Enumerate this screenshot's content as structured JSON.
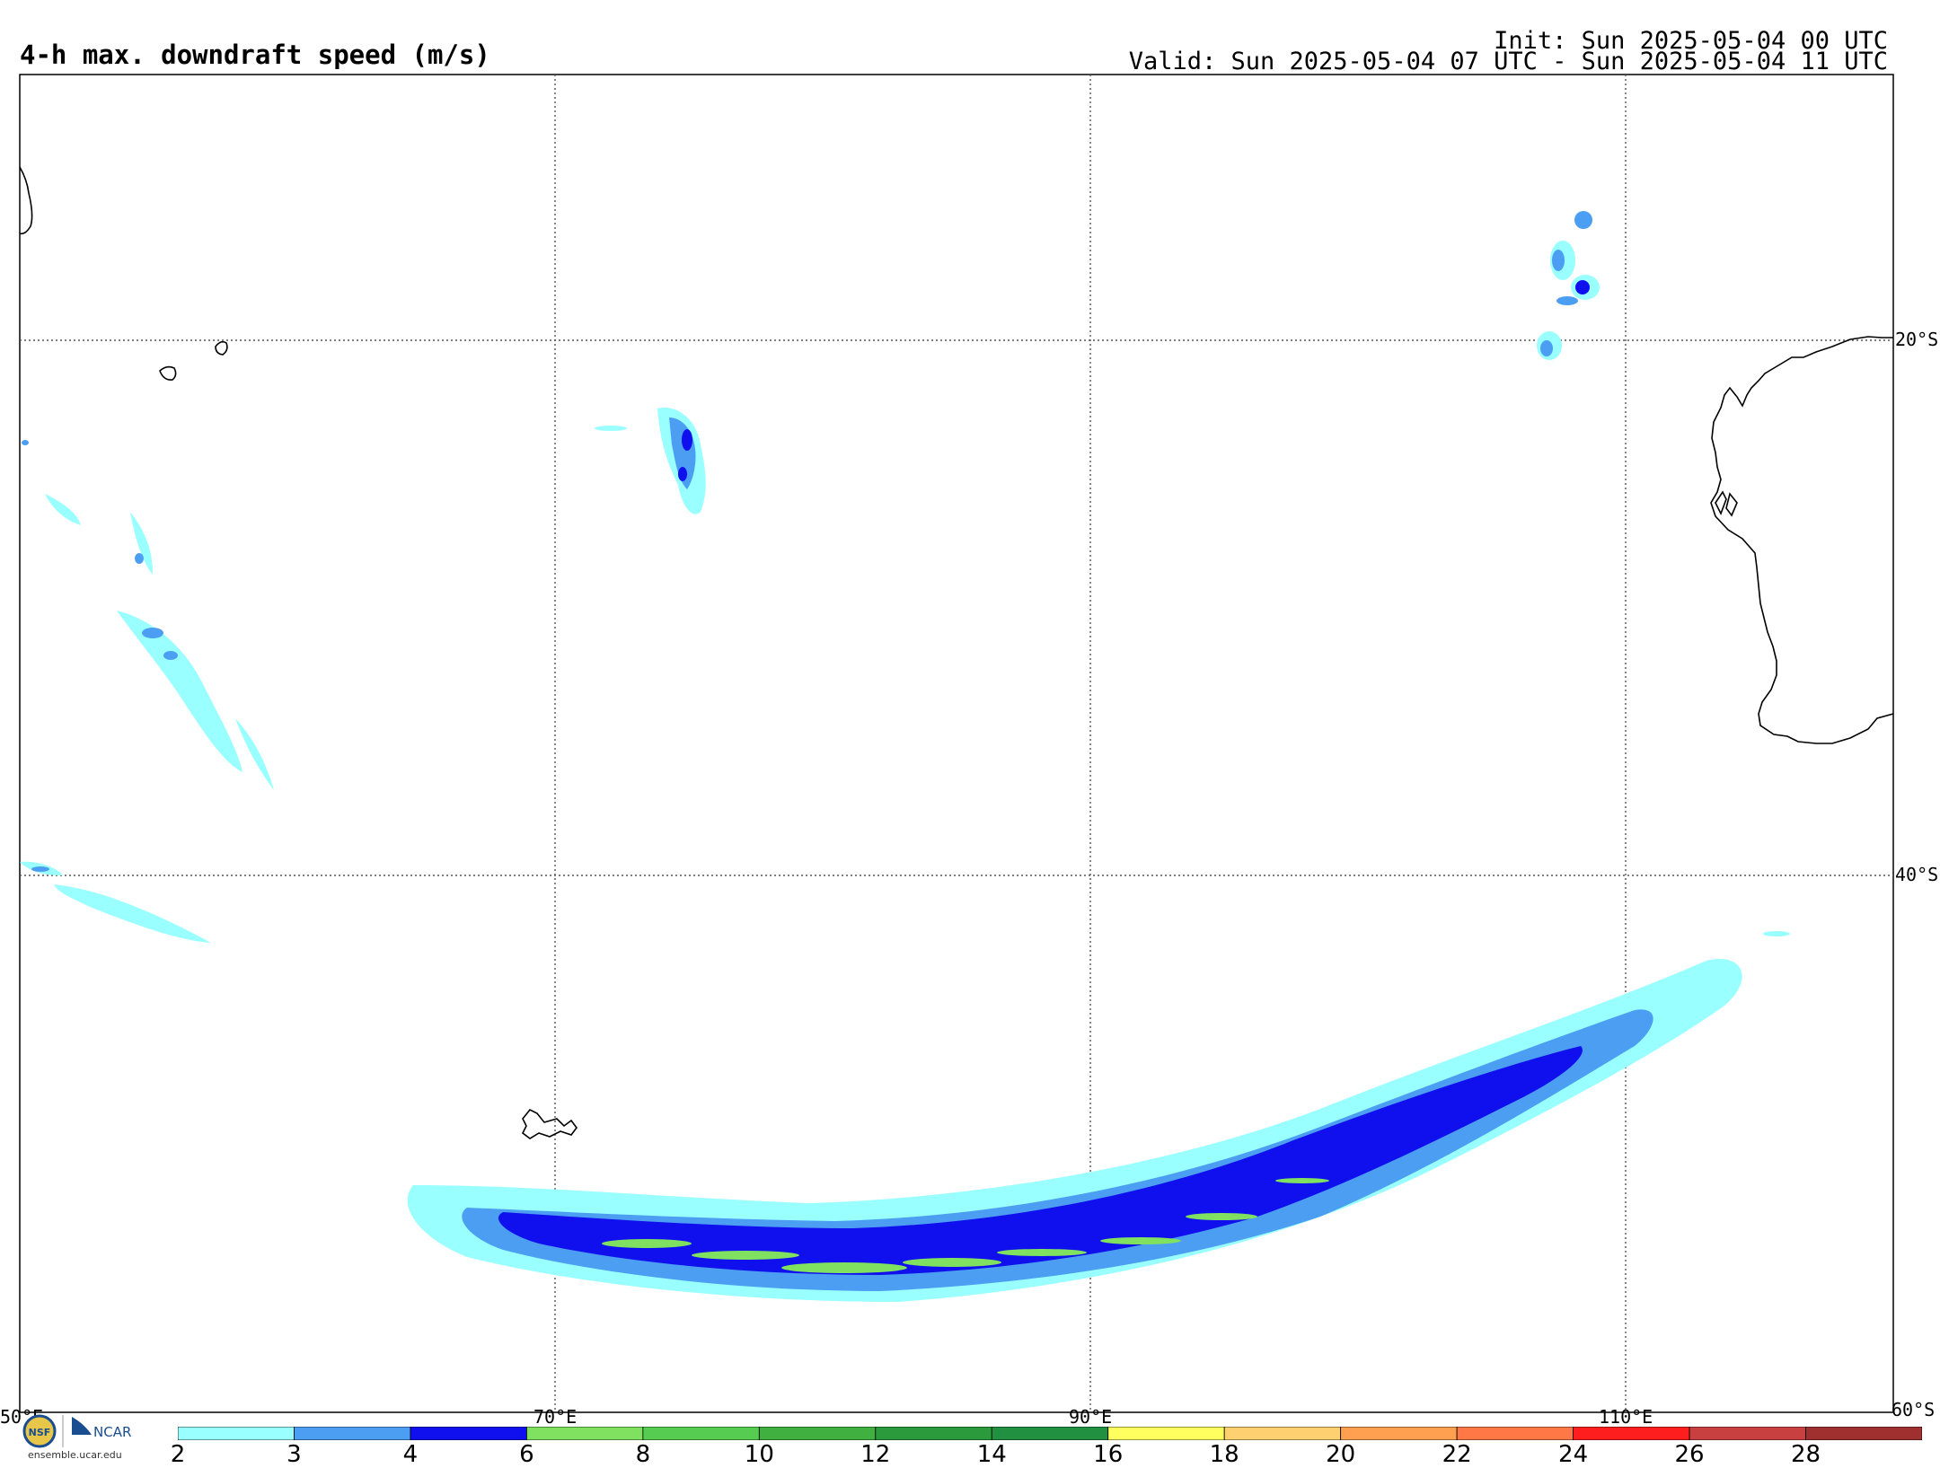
{
  "header": {
    "title": "4-h max. downdraft speed (m/s)",
    "init": "Init: Sun 2025-05-04 00 UTC",
    "valid": "Valid: Sun 2025-05-04 07 UTC - Sun 2025-05-04 11 UTC"
  },
  "map": {
    "lon_labels": [
      "50°E",
      "70°E",
      "90°E",
      "110°E"
    ],
    "lat_labels": [
      "20°S",
      "40°S",
      "60°S"
    ],
    "lon_values": [
      50,
      70,
      90,
      110
    ],
    "lat_values": [
      -20,
      -40,
      -60
    ]
  },
  "colorbar": {
    "labels": [
      "2",
      "3",
      "4",
      "6",
      "8",
      "10",
      "12",
      "14",
      "16",
      "18",
      "20",
      "22",
      "24",
      "26",
      "28"
    ],
    "colors": [
      "#99ffff",
      "#4c9ef2",
      "#1010ee",
      "#80e060",
      "#56cc50",
      "#40b040",
      "#2a9a3c",
      "#219040",
      "#ffff60",
      "#ffd070",
      "#ffa050",
      "#ff7846",
      "#ff1e1e",
      "#c84040",
      "#a03030",
      "#ee10ee",
      "#9a68d0"
    ]
  },
  "logo": {
    "org1": "NSF",
    "org2": "NCAR",
    "url": "ensemble.ucar.edu"
  }
}
